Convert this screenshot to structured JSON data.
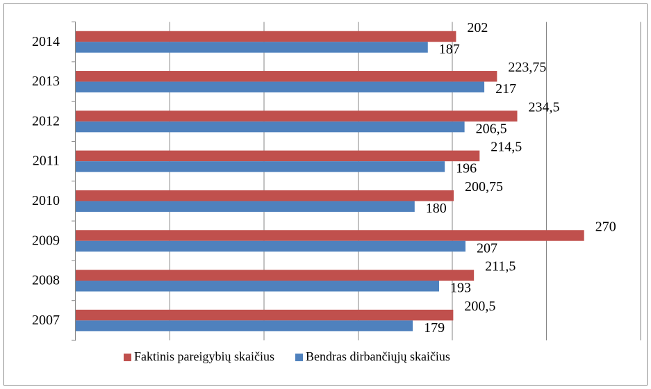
{
  "chart_data": {
    "type": "bar",
    "orientation": "horizontal",
    "categories": [
      "2007",
      "2008",
      "2009",
      "2010",
      "2011",
      "2012",
      "2013",
      "2014"
    ],
    "series": [
      {
        "name": "Faktinis pareigybių skaičius",
        "color": "#c0504d",
        "values": [
          200.5,
          211.5,
          270,
          200.75,
          214.5,
          234.5,
          223.75,
          202
        ],
        "value_labels": [
          "200,5",
          "211,5",
          "270",
          "200,75",
          "214,5",
          "234,5",
          "223,75",
          "202"
        ]
      },
      {
        "name": "Bendras dirbančiųjų skaičius",
        "color": "#4f81bd",
        "values": [
          179,
          193,
          207,
          180,
          196,
          206.5,
          217,
          187
        ],
        "value_labels": [
          "179",
          "193",
          "207",
          "180",
          "196",
          "206,5",
          "217",
          "187"
        ]
      }
    ],
    "xlim": [
      0,
      300
    ],
    "xticks": [
      0,
      50,
      100,
      150,
      200,
      250,
      300
    ],
    "grid": true,
    "legend": "bottom"
  }
}
